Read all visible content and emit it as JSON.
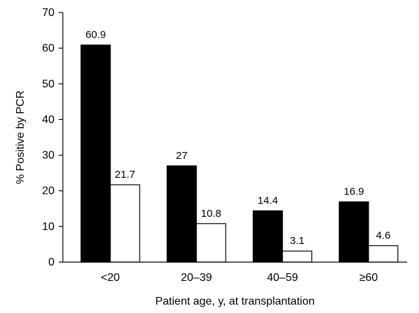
{
  "chart_data": {
    "type": "bar",
    "title": "",
    "xlabel": "Patient age, y, at transplantation",
    "ylabel": "% Positive by PCR",
    "ylim": [
      0,
      70
    ],
    "yticks": [
      0,
      10,
      20,
      30,
      40,
      50,
      60,
      70
    ],
    "grid": false,
    "legend": "none",
    "categories": [
      "<20",
      "20–39",
      "40–59",
      "≥60"
    ],
    "series": [
      {
        "values": [
          60.9,
          27,
          14.4,
          16.9
        ],
        "labels": [
          "60.9",
          "27",
          "14.4",
          "16.9"
        ],
        "color": "#000000"
      },
      {
        "values": [
          21.7,
          10.8,
          3.1,
          4.6
        ],
        "labels": [
          "21.7",
          "10.8",
          "3.1",
          "4.6"
        ],
        "color": "#ffffff"
      }
    ]
  }
}
